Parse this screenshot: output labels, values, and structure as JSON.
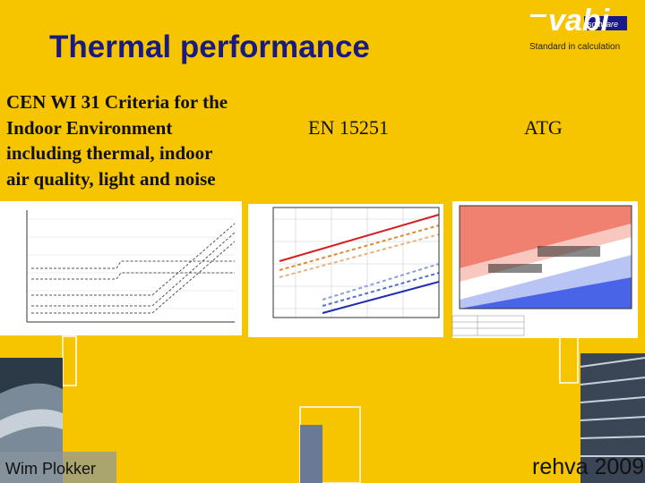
{
  "header": {
    "title": "Thermal performance",
    "logo": {
      "word": "vabi",
      "badge": "software"
    },
    "tagline": "Standard in calculation"
  },
  "columns": [
    {
      "lines": [
        "CEN WI 31 Criteria for the",
        "Indoor Environment",
        "including thermal, indoor",
        "air quality, light and noise"
      ]
    },
    {
      "lines": [
        "EN 15251"
      ]
    },
    {
      "lines": [
        "ATG"
      ]
    }
  ],
  "footer": {
    "author": "Wim Plokker",
    "event": "rehva 2009"
  }
}
